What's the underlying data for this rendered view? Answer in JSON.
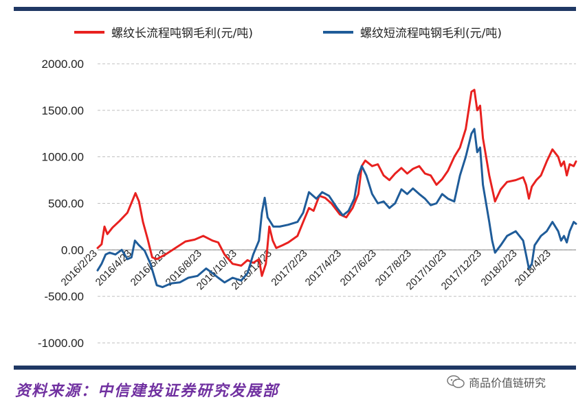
{
  "legend": {
    "long": {
      "label": "螺纹长流程吨钢毛利(元/吨)",
      "color": "#e8211f"
    },
    "short": {
      "label": "螺纹短流程吨钢毛利(元/吨)",
      "color": "#1f5c99"
    }
  },
  "source": "资料来源：中信建投证券研究发展部",
  "watermark": {
    "text": "商品价值链研究",
    "icon": "wechat-icon"
  },
  "colors": {
    "frame": "#1f3864",
    "grid": "#bfbfbf"
  },
  "chart_data": {
    "type": "line",
    "title": "",
    "xlabel": "",
    "ylabel": "",
    "ylim": [
      -1000,
      2000
    ],
    "yticks": [
      "2000.00",
      "1500.00",
      "1000.00",
      "500.00",
      "0.00",
      "-500.00",
      "-1000.00"
    ],
    "ytick_values": [
      2000,
      1500,
      1000,
      500,
      0,
      -500,
      -1000
    ],
    "xticks": [
      "2016/2/23",
      "2016/4/23",
      "2016/6/23",
      "2016/8/23",
      "2016/10/23",
      "2016/12/23",
      "2017/2/23",
      "2017/4/23",
      "2017/6/23",
      "2017/8/23",
      "2017/10/23",
      "2017/12/23",
      "2018/2/23",
      "2018/4/23"
    ],
    "xtick_dates": [
      "2016-02-23",
      "2016-04-23",
      "2016-06-23",
      "2016-08-23",
      "2016-10-23",
      "2016-12-23",
      "2017-02-23",
      "2017-04-23",
      "2017-06-23",
      "2017-08-23",
      "2017-10-23",
      "2017-12-23",
      "2018-02-23",
      "2018-04-23"
    ],
    "x_range": [
      "2016-02-23",
      "2018-06-05"
    ],
    "grid": "horizontal",
    "legend_position": "top",
    "series": [
      {
        "name": "螺纹长流程吨钢毛利(元/吨)",
        "color": "#e8211f",
        "points": [
          [
            "2016-02-23",
            20
          ],
          [
            "2016-03-01",
            60
          ],
          [
            "2016-03-06",
            250
          ],
          [
            "2016-03-11",
            170
          ],
          [
            "2016-03-20",
            240
          ],
          [
            "2016-04-01",
            310
          ],
          [
            "2016-04-15",
            400
          ],
          [
            "2016-04-25",
            550
          ],
          [
            "2016-04-29",
            610
          ],
          [
            "2016-05-05",
            520
          ],
          [
            "2016-05-12",
            300
          ],
          [
            "2016-05-20",
            120
          ],
          [
            "2016-05-28",
            -80
          ],
          [
            "2016-06-05",
            -100
          ],
          [
            "2016-06-20",
            -50
          ],
          [
            "2016-07-10",
            30
          ],
          [
            "2016-07-25",
            90
          ],
          [
            "2016-08-10",
            110
          ],
          [
            "2016-08-25",
            150
          ],
          [
            "2016-09-10",
            100
          ],
          [
            "2016-09-20",
            80
          ],
          [
            "2016-10-01",
            -50
          ],
          [
            "2016-10-15",
            -150
          ],
          [
            "2016-10-30",
            -170
          ],
          [
            "2016-11-10",
            -110
          ],
          [
            "2016-11-20",
            -140
          ],
          [
            "2016-11-30",
            -100
          ],
          [
            "2016-12-05",
            -280
          ],
          [
            "2016-12-12",
            -150
          ],
          [
            "2016-12-18",
            250
          ],
          [
            "2016-12-24",
            100
          ],
          [
            "2016-12-30",
            20
          ],
          [
            "2017-01-10",
            50
          ],
          [
            "2017-01-20",
            80
          ],
          [
            "2017-02-05",
            150
          ],
          [
            "2017-02-15",
            300
          ],
          [
            "2017-02-25",
            450
          ],
          [
            "2017-03-05",
            420
          ],
          [
            "2017-03-15",
            580
          ],
          [
            "2017-03-25",
            560
          ],
          [
            "2017-04-05",
            500
          ],
          [
            "2017-04-20",
            380
          ],
          [
            "2017-05-01",
            350
          ],
          [
            "2017-05-12",
            450
          ],
          [
            "2017-05-22",
            600
          ],
          [
            "2017-05-28",
            900
          ],
          [
            "2017-06-03",
            960
          ],
          [
            "2017-06-15",
            900
          ],
          [
            "2017-06-25",
            920
          ],
          [
            "2017-07-05",
            800
          ],
          [
            "2017-07-15",
            750
          ],
          [
            "2017-07-25",
            820
          ],
          [
            "2017-08-05",
            880
          ],
          [
            "2017-08-15",
            820
          ],
          [
            "2017-08-25",
            870
          ],
          [
            "2017-09-05",
            900
          ],
          [
            "2017-09-15",
            820
          ],
          [
            "2017-09-25",
            800
          ],
          [
            "2017-10-05",
            700
          ],
          [
            "2017-10-15",
            760
          ],
          [
            "2017-10-25",
            850
          ],
          [
            "2017-11-05",
            1000
          ],
          [
            "2017-11-15",
            1100
          ],
          [
            "2017-11-25",
            1300
          ],
          [
            "2017-12-05",
            1700
          ],
          [
            "2017-12-10",
            1720
          ],
          [
            "2017-12-15",
            1500
          ],
          [
            "2017-12-20",
            1550
          ],
          [
            "2017-12-25",
            1200
          ],
          [
            "2018-01-05",
            800
          ],
          [
            "2018-01-15",
            520
          ],
          [
            "2018-01-25",
            650
          ],
          [
            "2018-02-05",
            730
          ],
          [
            "2018-02-20",
            750
          ],
          [
            "2018-03-05",
            780
          ],
          [
            "2018-03-10",
            700
          ],
          [
            "2018-03-15",
            550
          ],
          [
            "2018-03-20",
            680
          ],
          [
            "2018-03-28",
            750
          ],
          [
            "2018-04-05",
            800
          ],
          [
            "2018-04-15",
            950
          ],
          [
            "2018-04-25",
            1080
          ],
          [
            "2018-05-05",
            1000
          ],
          [
            "2018-05-10",
            900
          ],
          [
            "2018-05-15",
            950
          ],
          [
            "2018-05-20",
            800
          ],
          [
            "2018-05-25",
            920
          ],
          [
            "2018-06-01",
            900
          ],
          [
            "2018-06-05",
            950
          ]
        ]
      },
      {
        "name": "螺纹短流程吨钢毛利(元/吨)",
        "color": "#1f5c99",
        "points": [
          [
            "2016-02-23",
            -220
          ],
          [
            "2016-03-01",
            -150
          ],
          [
            "2016-03-08",
            -50
          ],
          [
            "2016-03-15",
            -30
          ],
          [
            "2016-03-25",
            -50
          ],
          [
            "2016-04-05",
            0
          ],
          [
            "2016-04-15",
            -100
          ],
          [
            "2016-04-22",
            -80
          ],
          [
            "2016-04-28",
            100
          ],
          [
            "2016-05-05",
            50
          ],
          [
            "2016-05-15",
            -10
          ],
          [
            "2016-05-25",
            -150
          ],
          [
            "2016-06-05",
            -380
          ],
          [
            "2016-06-15",
            -400
          ],
          [
            "2016-06-30",
            -360
          ],
          [
            "2016-07-15",
            -350
          ],
          [
            "2016-07-30",
            -300
          ],
          [
            "2016-08-15",
            -280
          ],
          [
            "2016-08-30",
            -200
          ],
          [
            "2016-09-10",
            -250
          ],
          [
            "2016-09-20",
            -300
          ],
          [
            "2016-10-01",
            -350
          ],
          [
            "2016-10-15",
            -300
          ],
          [
            "2016-10-30",
            -330
          ],
          [
            "2016-11-10",
            -250
          ],
          [
            "2016-11-20",
            -50
          ],
          [
            "2016-11-30",
            100
          ],
          [
            "2016-12-05",
            400
          ],
          [
            "2016-12-10",
            560
          ],
          [
            "2016-12-15",
            350
          ],
          [
            "2016-12-25",
            250
          ],
          [
            "2017-01-05",
            250
          ],
          [
            "2017-01-20",
            270
          ],
          [
            "2017-02-05",
            300
          ],
          [
            "2017-02-15",
            400
          ],
          [
            "2017-02-25",
            620
          ],
          [
            "2017-03-10",
            550
          ],
          [
            "2017-03-20",
            620
          ],
          [
            "2017-04-01",
            580
          ],
          [
            "2017-04-15",
            450
          ],
          [
            "2017-04-25",
            370
          ],
          [
            "2017-05-05",
            420
          ],
          [
            "2017-05-15",
            550
          ],
          [
            "2017-05-22",
            800
          ],
          [
            "2017-05-28",
            900
          ],
          [
            "2017-06-05",
            800
          ],
          [
            "2017-06-15",
            600
          ],
          [
            "2017-06-25",
            500
          ],
          [
            "2017-07-05",
            520
          ],
          [
            "2017-07-15",
            450
          ],
          [
            "2017-07-25",
            500
          ],
          [
            "2017-08-05",
            650
          ],
          [
            "2017-08-15",
            600
          ],
          [
            "2017-08-25",
            660
          ],
          [
            "2017-09-05",
            600
          ],
          [
            "2017-09-15",
            550
          ],
          [
            "2017-09-25",
            480
          ],
          [
            "2017-10-05",
            500
          ],
          [
            "2017-10-15",
            600
          ],
          [
            "2017-10-25",
            550
          ],
          [
            "2017-11-05",
            520
          ],
          [
            "2017-11-15",
            800
          ],
          [
            "2017-11-25",
            1000
          ],
          [
            "2017-12-05",
            1250
          ],
          [
            "2017-12-10",
            1300
          ],
          [
            "2017-12-15",
            1050
          ],
          [
            "2017-12-20",
            1100
          ],
          [
            "2017-12-25",
            700
          ],
          [
            "2018-01-05",
            300
          ],
          [
            "2018-01-10",
            100
          ],
          [
            "2018-01-15",
            -30
          ],
          [
            "2018-01-25",
            50
          ],
          [
            "2018-02-05",
            150
          ],
          [
            "2018-02-20",
            200
          ],
          [
            "2018-03-05",
            100
          ],
          [
            "2018-03-10",
            -50
          ],
          [
            "2018-03-15",
            -200
          ],
          [
            "2018-03-20",
            -150
          ],
          [
            "2018-03-25",
            50
          ],
          [
            "2018-04-05",
            150
          ],
          [
            "2018-04-15",
            200
          ],
          [
            "2018-04-25",
            300
          ],
          [
            "2018-05-05",
            200
          ],
          [
            "2018-05-10",
            100
          ],
          [
            "2018-05-15",
            150
          ],
          [
            "2018-05-20",
            80
          ],
          [
            "2018-05-25",
            200
          ],
          [
            "2018-06-01",
            300
          ],
          [
            "2018-06-05",
            280
          ]
        ]
      }
    ]
  }
}
